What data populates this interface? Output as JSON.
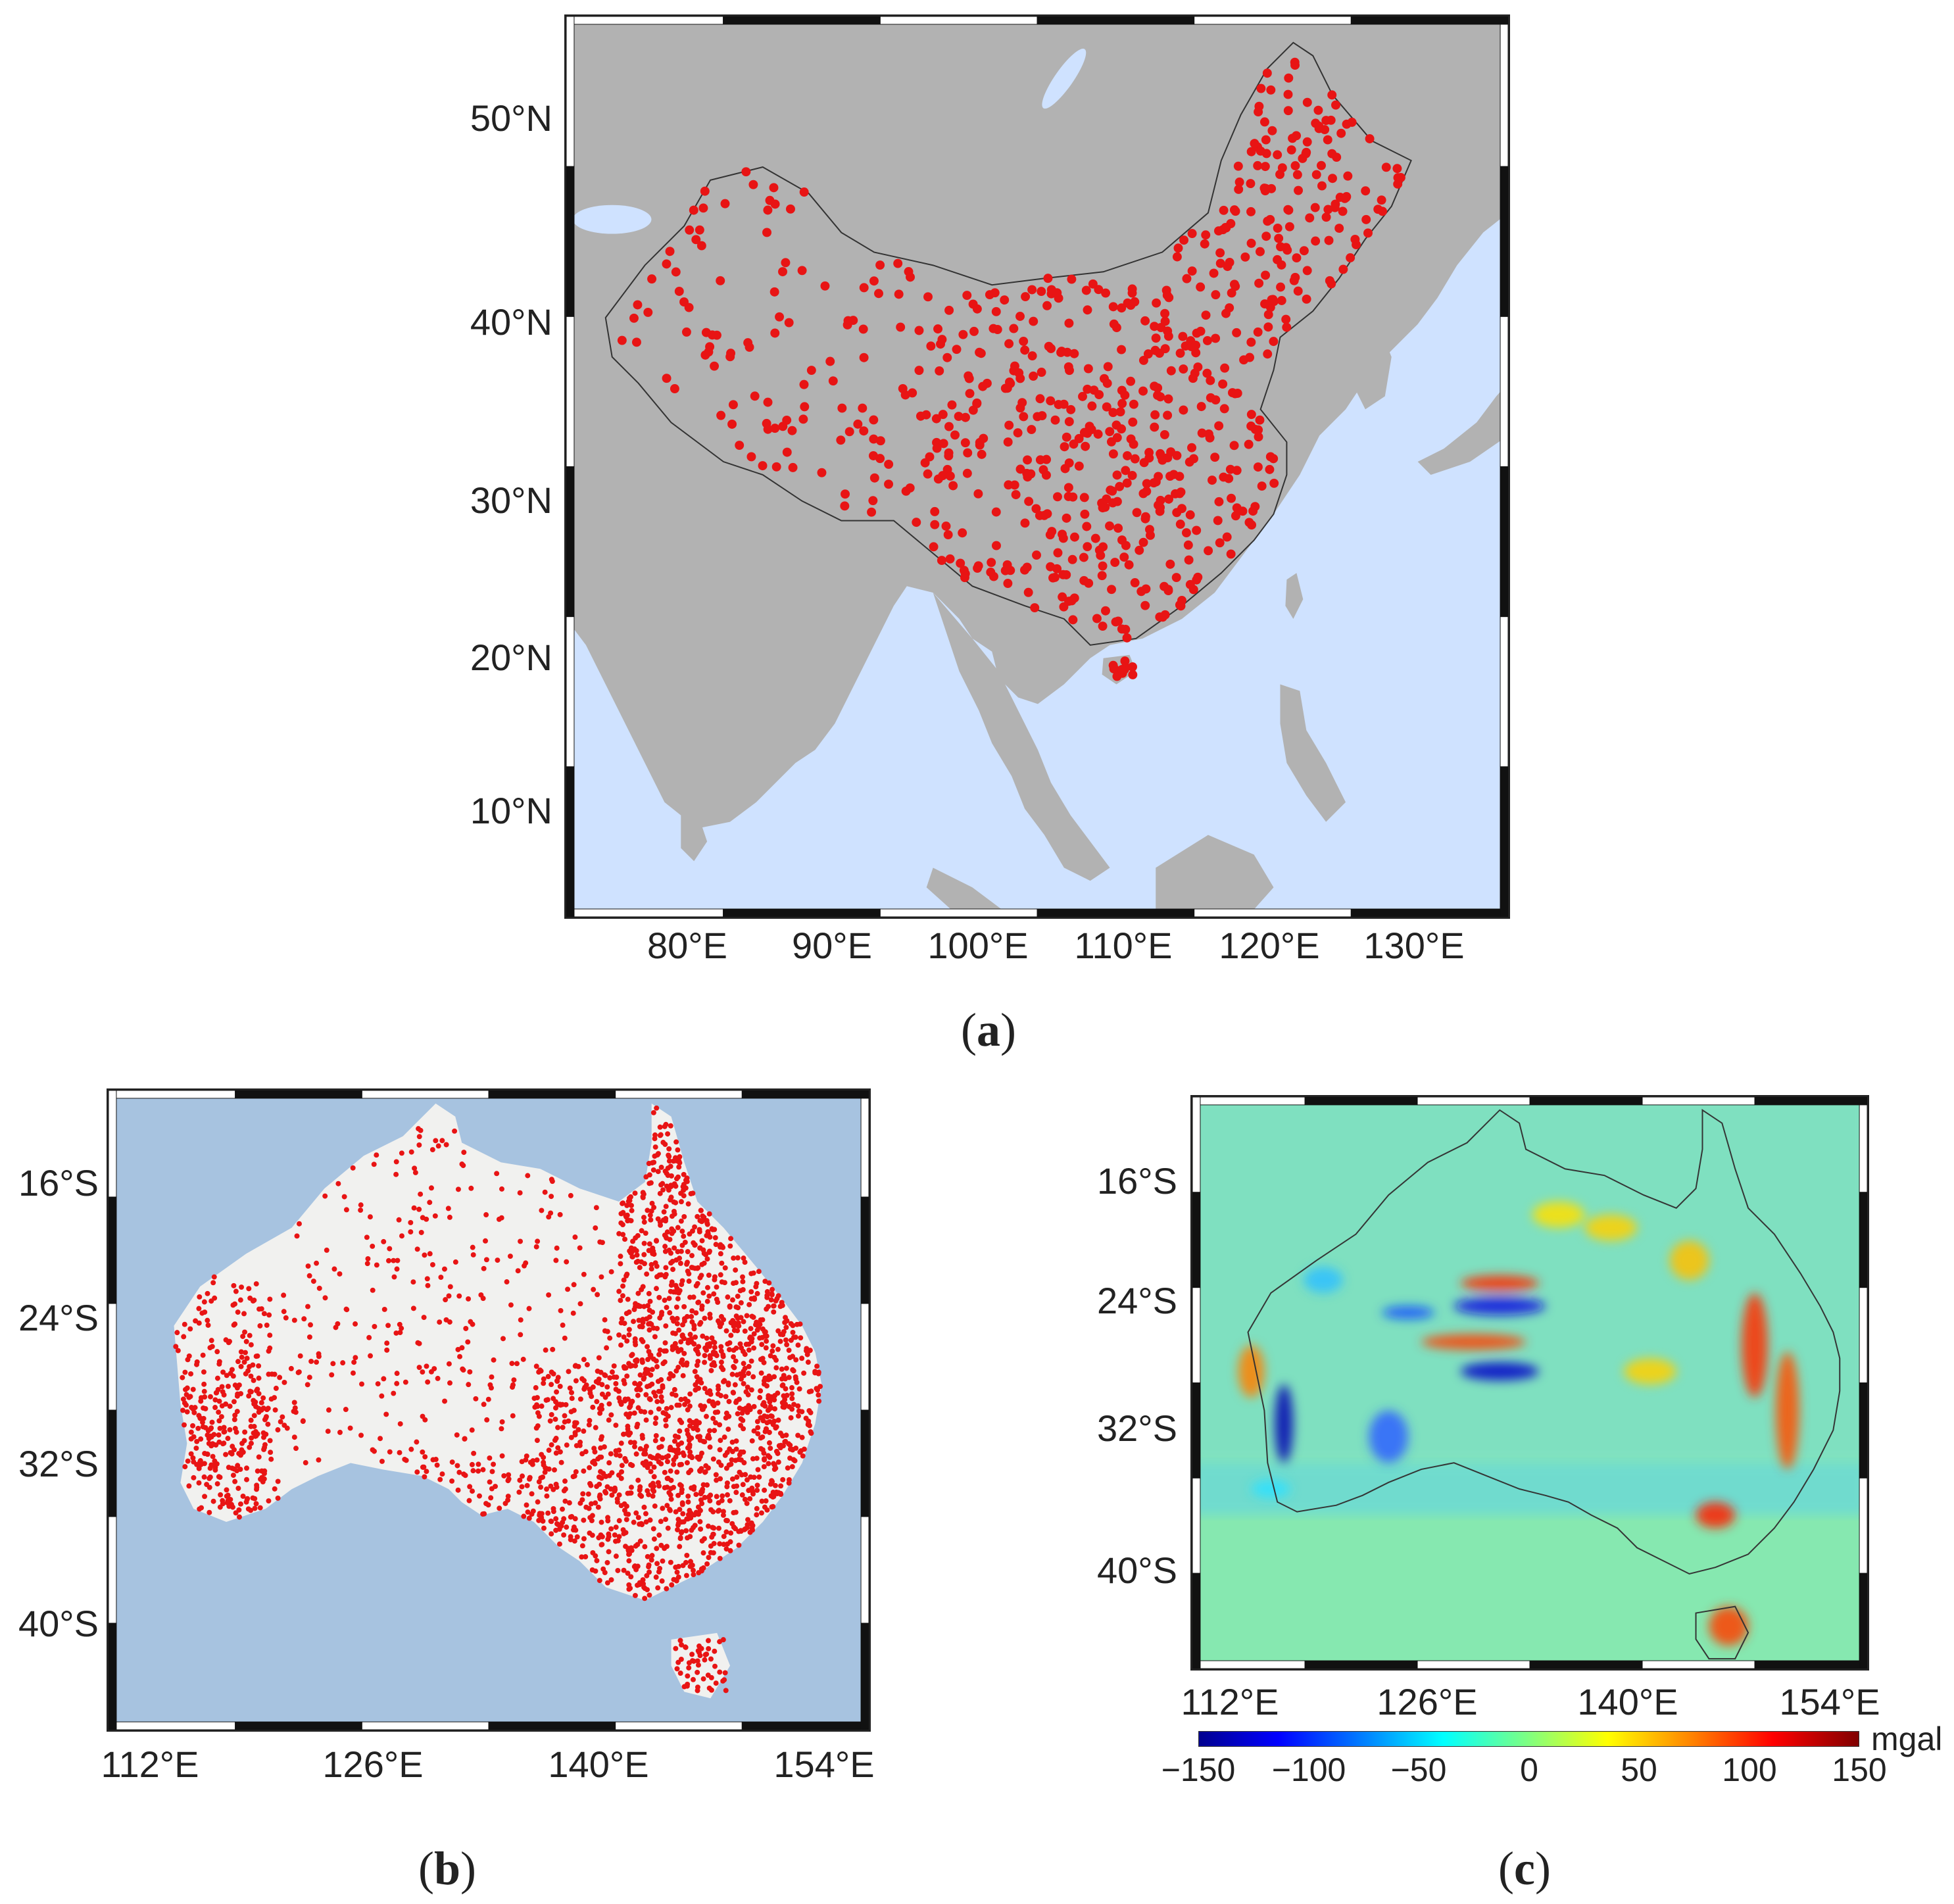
{
  "figure": {
    "panels": [
      {
        "id": "a",
        "caption_letter": "a",
        "map_type": "point-stations",
        "region": "China",
        "lon_range": [
          72,
          137
        ],
        "lat_range": [
          4,
          55
        ],
        "y_ticks": [
          "50°N",
          "40°N",
          "30°N",
          "20°N",
          "10°N"
        ],
        "x_ticks": [
          "80°E",
          "90°E",
          "100°E",
          "110°E",
          "120°E",
          "130°E"
        ],
        "colors": {
          "land": "#b2b2b2",
          "ocean": "#cfe2ff",
          "points": "#e81414"
        }
      },
      {
        "id": "b",
        "caption_letter": "b",
        "map_type": "point-stations",
        "region": "Australia",
        "lon_range": [
          108,
          158
        ],
        "lat_range": [
          -46,
          -10
        ],
        "y_ticks": [
          "16°S",
          "24°S",
          "32°S",
          "40°S"
        ],
        "x_ticks": [
          "112°E",
          "126°E",
          "140°E",
          "154°E"
        ],
        "colors": {
          "land": "#f1f1ef",
          "ocean": "#a7c3e0",
          "points": "#e81414"
        }
      },
      {
        "id": "c",
        "caption_letter": "c",
        "map_type": "gravity-anomaly-field",
        "region": "Australia",
        "lon_range": [
          108,
          158
        ],
        "lat_range": [
          -46,
          -10
        ],
        "y_ticks": [
          "16°S",
          "24°S",
          "32°S",
          "40°S"
        ],
        "x_ticks": [
          "112°E",
          "126°E",
          "140°E",
          "154°E"
        ],
        "colorbar": {
          "ticks": [
            "−150",
            "−100",
            "−50",
            "0",
            "50",
            "100",
            "150"
          ],
          "unit": "mgal",
          "range": [
            -150,
            150
          ],
          "colormap": "jet"
        }
      }
    ]
  }
}
